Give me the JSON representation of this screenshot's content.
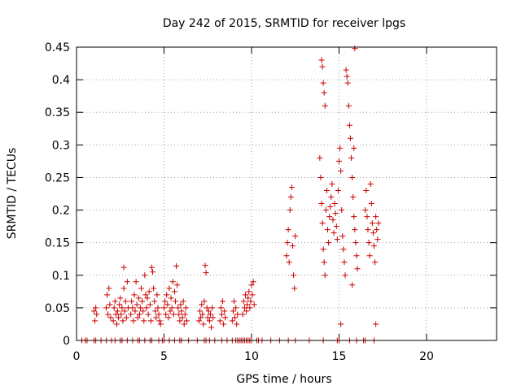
{
  "chart_data": {
    "type": "scatter",
    "title": "Day 242 of 2015, SRMTID for receiver lpgs",
    "xlabel": "GPS time / hours",
    "ylabel": "SRMTID / TECUs",
    "xlim": [
      0,
      24
    ],
    "ylim": [
      0,
      0.45
    ],
    "xticks": [
      0,
      5,
      10,
      15,
      20
    ],
    "xtick_labels": [
      "0",
      "5",
      "10",
      "15",
      "20"
    ],
    "yticks": [
      0,
      0.05,
      0.1,
      0.15,
      0.2,
      0.25,
      0.3,
      0.35,
      0.4,
      0.45
    ],
    "ytick_labels": [
      "0",
      "0.05",
      "0.1",
      "0.15",
      "0.2",
      "0.25",
      "0.3",
      "0.35",
      "0.4",
      "0.45"
    ],
    "grid": true,
    "marker": "plus",
    "color": "#cc0000",
    "series": [
      {
        "name": "SRMTID",
        "points": [
          [
            1.0,
            0.045
          ],
          [
            1.05,
            0.03
          ],
          [
            1.1,
            0.05
          ],
          [
            1.15,
            0.04
          ],
          [
            1.7,
            0.05
          ],
          [
            1.75,
            0.07
          ],
          [
            1.8,
            0.04
          ],
          [
            1.85,
            0.08
          ],
          [
            1.9,
            0.055
          ],
          [
            1.95,
            0.035
          ],
          [
            2.1,
            0.03
          ],
          [
            2.15,
            0.05
          ],
          [
            2.2,
            0.06
          ],
          [
            2.25,
            0.04
          ],
          [
            2.3,
            0.025
          ],
          [
            2.35,
            0.045
          ],
          [
            2.4,
            0.035
          ],
          [
            2.45,
            0.055
          ],
          [
            2.5,
            0.065
          ],
          [
            2.55,
            0.04
          ],
          [
            2.6,
            0.05
          ],
          [
            2.65,
            0.03
          ],
          [
            2.7,
            0.08
          ],
          [
            2.75,
            0.045
          ],
          [
            2.8,
            0.06
          ],
          [
            2.85,
            0.035
          ],
          [
            2.9,
            0.09
          ],
          [
            2.95,
            0.05
          ],
          [
            2.7,
            0.112
          ],
          [
            3.1,
            0.04
          ],
          [
            3.15,
            0.06
          ],
          [
            3.2,
            0.05
          ],
          [
            3.25,
            0.03
          ],
          [
            3.3,
            0.07
          ],
          [
            3.35,
            0.045
          ],
          [
            3.4,
            0.09
          ],
          [
            3.45,
            0.055
          ],
          [
            3.5,
            0.035
          ],
          [
            3.55,
            0.065
          ],
          [
            3.6,
            0.04
          ],
          [
            3.65,
            0.05
          ],
          [
            3.7,
            0.08
          ],
          [
            3.75,
            0.06
          ],
          [
            3.8,
            0.045
          ],
          [
            3.85,
            0.03
          ],
          [
            3.9,
            0.1
          ],
          [
            3.95,
            0.07
          ],
          [
            4.0,
            0.05
          ],
          [
            4.05,
            0.065
          ],
          [
            4.1,
            0.04
          ],
          [
            4.15,
            0.075
          ],
          [
            4.2,
            0.055
          ],
          [
            4.25,
            0.03
          ],
          [
            4.3,
            0.112
          ],
          [
            4.35,
            0.105
          ],
          [
            4.4,
            0.08
          ],
          [
            4.45,
            0.06
          ],
          [
            4.5,
            0.045
          ],
          [
            4.55,
            0.035
          ],
          [
            4.6,
            0.07
          ],
          [
            4.65,
            0.05
          ],
          [
            4.7,
            0.04
          ],
          [
            4.75,
            0.03
          ],
          [
            4.8,
            0.025
          ],
          [
            5.0,
            0.05
          ],
          [
            5.05,
            0.06
          ],
          [
            5.1,
            0.04
          ],
          [
            5.15,
            0.07
          ],
          [
            5.2,
            0.055
          ],
          [
            5.25,
            0.035
          ],
          [
            5.3,
            0.08
          ],
          [
            5.35,
            0.045
          ],
          [
            5.4,
            0.065
          ],
          [
            5.45,
            0.05
          ],
          [
            5.5,
            0.09
          ],
          [
            5.55,
            0.04
          ],
          [
            5.6,
            0.075
          ],
          [
            5.65,
            0.06
          ],
          [
            5.7,
            0.114
          ],
          [
            5.75,
            0.085
          ],
          [
            5.8,
            0.05
          ],
          [
            5.85,
            0.04
          ],
          [
            5.9,
            0.03
          ],
          [
            5.95,
            0.055
          ],
          [
            6.0,
            0.045
          ],
          [
            6.05,
            0.035
          ],
          [
            6.1,
            0.06
          ],
          [
            6.15,
            0.025
          ],
          [
            6.2,
            0.04
          ],
          [
            6.25,
            0.05
          ],
          [
            6.3,
            0.03
          ],
          [
            7.0,
            0.03
          ],
          [
            7.05,
            0.045
          ],
          [
            7.1,
            0.035
          ],
          [
            7.15,
            0.055
          ],
          [
            7.2,
            0.04
          ],
          [
            7.25,
            0.025
          ],
          [
            7.3,
            0.06
          ],
          [
            7.35,
            0.115
          ],
          [
            7.4,
            0.104
          ],
          [
            7.45,
            0.05
          ],
          [
            7.5,
            0.035
          ],
          [
            7.55,
            0.045
          ],
          [
            7.6,
            0.03
          ],
          [
            7.65,
            0.04
          ],
          [
            7.7,
            0.02
          ],
          [
            7.75,
            0.05
          ],
          [
            7.8,
            0.035
          ],
          [
            8.2,
            0.03
          ],
          [
            8.25,
            0.05
          ],
          [
            8.3,
            0.04
          ],
          [
            8.35,
            0.06
          ],
          [
            8.4,
            0.025
          ],
          [
            8.45,
            0.045
          ],
          [
            8.5,
            0.035
          ],
          [
            8.9,
            0.03
          ],
          [
            8.95,
            0.045
          ],
          [
            9.0,
            0.06
          ],
          [
            9.05,
            0.035
          ],
          [
            9.1,
            0.05
          ],
          [
            9.15,
            0.025
          ],
          [
            9.2,
            0.04
          ],
          [
            9.5,
            0.04
          ],
          [
            9.55,
            0.06
          ],
          [
            9.6,
            0.05
          ],
          [
            9.65,
            0.07
          ],
          [
            9.7,
            0.045
          ],
          [
            9.75,
            0.055
          ],
          [
            9.8,
            0.065
          ],
          [
            9.85,
            0.075
          ],
          [
            9.9,
            0.05
          ],
          [
            9.95,
            0.06
          ],
          [
            10.0,
            0.085
          ],
          [
            10.05,
            0.07
          ],
          [
            10.1,
            0.09
          ],
          [
            10.15,
            0.055
          ],
          [
            12.0,
            0.13
          ],
          [
            12.05,
            0.15
          ],
          [
            12.1,
            0.17
          ],
          [
            12.15,
            0.12
          ],
          [
            12.2,
            0.2
          ],
          [
            12.25,
            0.22
          ],
          [
            12.3,
            0.235
          ],
          [
            12.35,
            0.145
          ],
          [
            12.4,
            0.1
          ],
          [
            12.45,
            0.08
          ],
          [
            12.5,
            0.16
          ],
          [
            13.9,
            0.28
          ],
          [
            13.95,
            0.25
          ],
          [
            14.0,
            0.43
          ],
          [
            14.05,
            0.42
          ],
          [
            14.1,
            0.395
          ],
          [
            14.15,
            0.38
          ],
          [
            14.2,
            0.36
          ],
          [
            14.0,
            0.21
          ],
          [
            14.05,
            0.18
          ],
          [
            14.1,
            0.14
          ],
          [
            14.15,
            0.12
          ],
          [
            14.2,
            0.1
          ],
          [
            14.25,
            0.2
          ],
          [
            14.3,
            0.23
          ],
          [
            14.35,
            0.17
          ],
          [
            14.4,
            0.15
          ],
          [
            14.45,
            0.19
          ],
          [
            14.5,
            0.205
          ],
          [
            14.55,
            0.22
          ],
          [
            14.6,
            0.24
          ],
          [
            14.65,
            0.185
          ],
          [
            14.7,
            0.165
          ],
          [
            14.75,
            0.21
          ],
          [
            14.8,
            0.195
          ],
          [
            14.85,
            0.175
          ],
          [
            14.9,
            0.155
          ],
          [
            14.95,
            0.23
          ],
          [
            15.0,
            0.275
          ],
          [
            15.05,
            0.295
          ],
          [
            15.1,
            0.26
          ],
          [
            15.15,
            0.2
          ],
          [
            15.2,
            0.16
          ],
          [
            15.25,
            0.14
          ],
          [
            15.3,
            0.12
          ],
          [
            15.35,
            0.1
          ],
          [
            15.4,
            0.415
          ],
          [
            15.45,
            0.405
          ],
          [
            15.5,
            0.395
          ],
          [
            15.55,
            0.36
          ],
          [
            15.6,
            0.33
          ],
          [
            15.65,
            0.31
          ],
          [
            15.7,
            0.28
          ],
          [
            15.75,
            0.25
          ],
          [
            15.8,
            0.22
          ],
          [
            15.85,
            0.19
          ],
          [
            15.9,
            0.17
          ],
          [
            15.95,
            0.15
          ],
          [
            16.0,
            0.13
          ],
          [
            16.05,
            0.11
          ],
          [
            15.9,
            0.448
          ],
          [
            15.1,
            0.025
          ],
          [
            15.85,
            0.295
          ],
          [
            15.75,
            0.085
          ],
          [
            16.5,
            0.2
          ],
          [
            16.55,
            0.23
          ],
          [
            16.6,
            0.19
          ],
          [
            16.65,
            0.17
          ],
          [
            16.7,
            0.15
          ],
          [
            16.75,
            0.13
          ],
          [
            16.8,
            0.24
          ],
          [
            16.85,
            0.21
          ],
          [
            16.9,
            0.18
          ],
          [
            16.95,
            0.165
          ],
          [
            17.0,
            0.145
          ],
          [
            17.05,
            0.12
          ],
          [
            17.1,
            0.19
          ],
          [
            17.15,
            0.17
          ],
          [
            17.2,
            0.155
          ],
          [
            17.25,
            0.18
          ],
          [
            17.1,
            0.025
          ]
        ]
      },
      {
        "name": "zero-level",
        "points": [
          [
            0.3,
            0
          ],
          [
            0.5,
            0
          ],
          [
            0.6,
            0
          ],
          [
            1.0,
            0
          ],
          [
            1.1,
            0
          ],
          [
            1.4,
            0
          ],
          [
            1.7,
            0
          ],
          [
            2.0,
            0
          ],
          [
            2.2,
            0
          ],
          [
            2.5,
            0
          ],
          [
            2.6,
            0
          ],
          [
            2.9,
            0
          ],
          [
            3.2,
            0
          ],
          [
            3.5,
            0
          ],
          [
            3.6,
            0
          ],
          [
            3.9,
            0
          ],
          [
            4.2,
            0
          ],
          [
            4.3,
            0
          ],
          [
            4.7,
            0
          ],
          [
            4.9,
            0
          ],
          [
            5.0,
            0
          ],
          [
            5.3,
            0
          ],
          [
            5.6,
            0
          ],
          [
            5.9,
            0
          ],
          [
            6.0,
            0
          ],
          [
            6.4,
            0
          ],
          [
            6.9,
            0
          ],
          [
            7.3,
            0
          ],
          [
            7.4,
            0
          ],
          [
            7.6,
            0
          ],
          [
            7.9,
            0
          ],
          [
            8.3,
            0
          ],
          [
            8.6,
            0
          ],
          [
            8.9,
            0
          ],
          [
            9.1,
            0
          ],
          [
            9.2,
            0
          ],
          [
            9.3,
            0
          ],
          [
            9.4,
            0
          ],
          [
            9.5,
            0
          ],
          [
            9.6,
            0
          ],
          [
            9.7,
            0
          ],
          [
            9.8,
            0
          ],
          [
            9.9,
            0
          ],
          [
            10.0,
            0
          ],
          [
            10.3,
            0
          ],
          [
            10.4,
            0
          ],
          [
            10.6,
            0
          ],
          [
            11.1,
            0
          ],
          [
            11.6,
            0
          ],
          [
            12.1,
            0
          ],
          [
            12.5,
            0
          ],
          [
            13.3,
            0
          ],
          [
            14.1,
            0
          ],
          [
            14.9,
            0
          ],
          [
            15.0,
            0
          ],
          [
            15.6,
            0
          ],
          [
            16.0,
            0
          ],
          [
            16.4,
            0
          ],
          [
            16.5,
            0
          ],
          [
            17.0,
            0
          ]
        ]
      }
    ]
  }
}
